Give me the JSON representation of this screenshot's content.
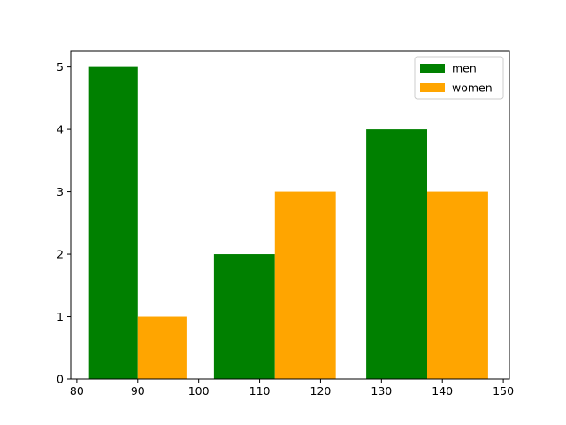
{
  "chart_data": {
    "type": "bar",
    "title": "",
    "xlabel": "",
    "ylabel": "",
    "xlim": [
      79,
      151
    ],
    "ylim": [
      0,
      5.25
    ],
    "x_ticks": [
      80,
      90,
      100,
      110,
      120,
      130,
      140,
      150
    ],
    "y_ticks": [
      0,
      1,
      2,
      3,
      4,
      5
    ],
    "grid": false,
    "legend": {
      "placement": "top-right"
    },
    "series": [
      {
        "name": "men",
        "color": "#008000",
        "bars": [
          {
            "x_start": 82,
            "x_end": 90,
            "value": 5
          },
          {
            "x_start": 102.5,
            "x_end": 112.5,
            "value": 2
          },
          {
            "x_start": 127.5,
            "x_end": 137.5,
            "value": 4
          }
        ]
      },
      {
        "name": "women",
        "color": "#FFA500",
        "bars": [
          {
            "x_start": 90,
            "x_end": 98,
            "value": 1
          },
          {
            "x_start": 112.5,
            "x_end": 122.5,
            "value": 3
          },
          {
            "x_start": 137.5,
            "x_end": 147.5,
            "value": 3
          }
        ]
      }
    ]
  }
}
